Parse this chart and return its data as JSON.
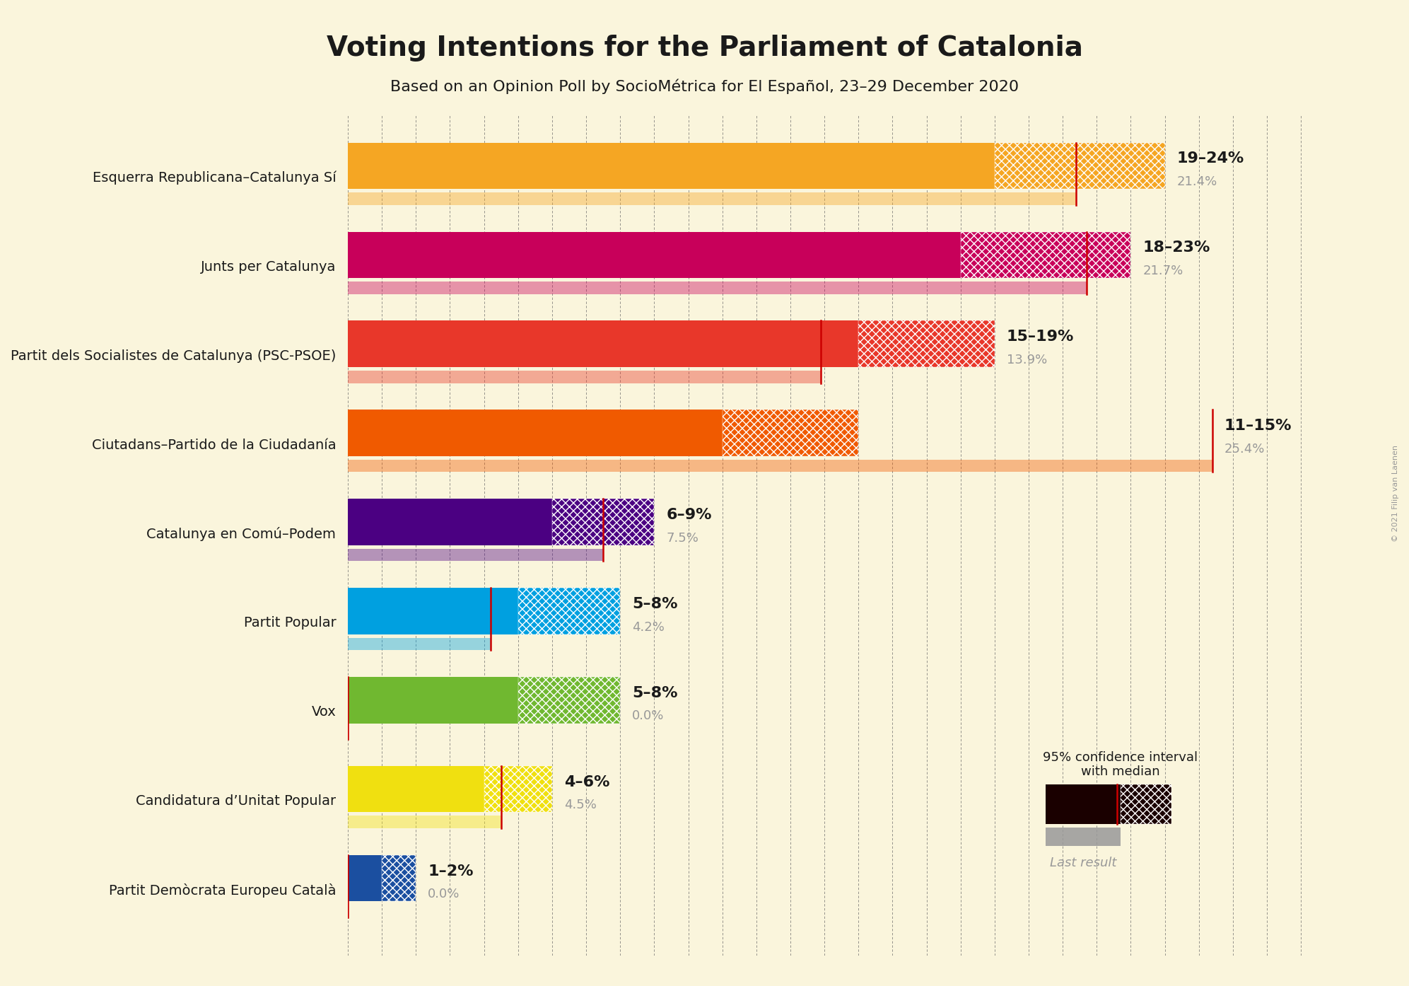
{
  "title": "Voting Intentions for the Parliament of Catalonia",
  "subtitle": "Based on an Opinion Poll by SocioMétrica for El Español, 23–29 December 2020",
  "background_color": "#FAF5DC",
  "parties": [
    {
      "name": "Esquerra Republicana–Catalunya Sí",
      "low": 19,
      "high": 24,
      "median": 21.4,
      "last_result": 21.4,
      "color": "#F5A623",
      "label": "19–24%",
      "label2": "21.4%"
    },
    {
      "name": "Junts per Catalunya",
      "low": 18,
      "high": 23,
      "median": 21.7,
      "last_result": 21.7,
      "color": "#C8005A",
      "label": "18–23%",
      "label2": "21.7%"
    },
    {
      "name": "Partit dels Socialistes de Catalunya (PSC-PSOE)",
      "low": 15,
      "high": 19,
      "median": 13.9,
      "last_result": 13.9,
      "color": "#E8372A",
      "label": "15–19%",
      "label2": "13.9%"
    },
    {
      "name": "Ciutadans–Partido de la Ciudadanía",
      "low": 11,
      "high": 15,
      "median": 25.4,
      "last_result": 25.4,
      "color": "#F05A00",
      "label": "11–15%",
      "label2": "25.4%"
    },
    {
      "name": "Catalunya en Comú–Podem",
      "low": 6,
      "high": 9,
      "median": 7.5,
      "last_result": 7.5,
      "color": "#4B0082",
      "label": "6–9%",
      "label2": "7.5%"
    },
    {
      "name": "Partit Popular",
      "low": 5,
      "high": 8,
      "median": 4.2,
      "last_result": 4.2,
      "color": "#00A0E0",
      "label": "5–8%",
      "label2": "4.2%"
    },
    {
      "name": "Vox",
      "low": 5,
      "high": 8,
      "median": 0.0,
      "last_result": 0.0,
      "color": "#70B830",
      "label": "5–8%",
      "label2": "0.0%"
    },
    {
      "name": "Candidatura d’Unitat Popular",
      "low": 4,
      "high": 6,
      "median": 4.5,
      "last_result": 4.5,
      "color": "#F0E010",
      "label": "4–6%",
      "label2": "4.5%"
    },
    {
      "name": "Partit Demòcrata Europeu Català",
      "low": 1,
      "high": 2,
      "median": 0.0,
      "last_result": 0.0,
      "color": "#1B4FA0",
      "label": "1–2%",
      "label2": "0.0%"
    }
  ],
  "xlim": [
    0,
    29
  ],
  "copyright": "© 2021 Filip van Laenen",
  "legend_label1": "95% confidence interval\nwith median",
  "legend_label2": "Last result",
  "median_line_color": "#CC0000",
  "label_color": "#1a1a1a",
  "label2_color": "#999999"
}
